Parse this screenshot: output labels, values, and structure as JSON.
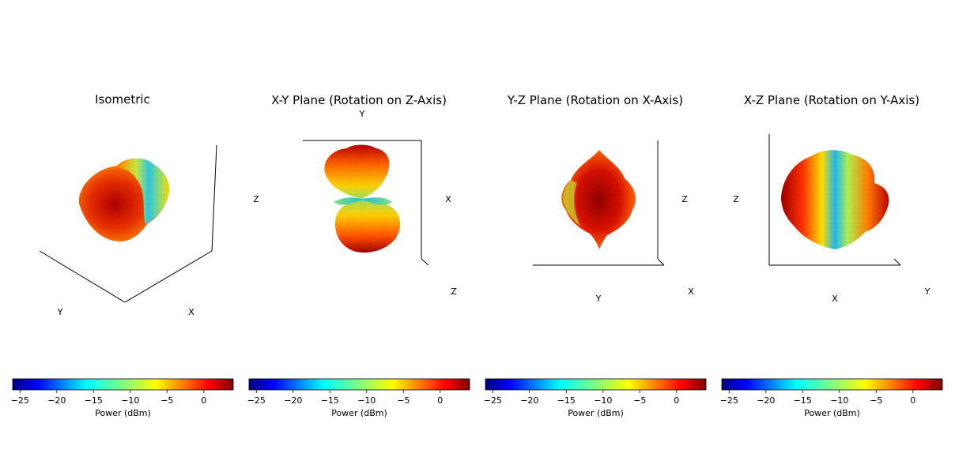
{
  "chart_data": [
    {
      "type": "surface3d",
      "title": "Isometric",
      "axis_labels": {
        "x": "X",
        "y": "Y"
      },
      "colorbar": {
        "label": "Power (dBm)",
        "range": [
          -26,
          4
        ],
        "ticks": [
          -25,
          -20,
          -15,
          -10,
          -5,
          0
        ],
        "tick_labels": [
          "−25",
          "−20",
          "−15",
          "−10",
          "−5",
          "0"
        ],
        "colormap": "jet"
      }
    },
    {
      "type": "surface3d",
      "title": "X-Y Plane (Rotation on Z-Axis)",
      "axis_labels": {
        "top": "Y",
        "left": "Z",
        "right": "X",
        "corner": "Z"
      },
      "colorbar": {
        "label": "Power (dBm)",
        "range": [
          -26,
          4
        ],
        "ticks": [
          -25,
          -20,
          -15,
          -10,
          -5,
          0
        ],
        "tick_labels": [
          "−25",
          "−20",
          "−15",
          "−10",
          "−5",
          "0"
        ],
        "colormap": "jet"
      }
    },
    {
      "type": "surface3d",
      "title": "Y-Z Plane (Rotation on X-Axis)",
      "axis_labels": {
        "right": "Z",
        "bottom": "Y",
        "corner": "X"
      },
      "colorbar": {
        "label": "Power (dBm)",
        "range": [
          -26,
          4
        ],
        "ticks": [
          -25,
          -20,
          -15,
          -10,
          -5,
          0
        ],
        "tick_labels": [
          "−25",
          "−20",
          "−15",
          "−10",
          "−5",
          "0"
        ],
        "colormap": "jet"
      }
    },
    {
      "type": "surface3d",
      "title": "X-Z Plane (Rotation on Y-Axis)",
      "axis_labels": {
        "left": "Z",
        "bottom": "X",
        "corner": "Y"
      },
      "colorbar": {
        "label": "Power (dBm)",
        "range": [
          -26,
          4
        ],
        "ticks": [
          -25,
          -20,
          -15,
          -10,
          -5,
          0
        ],
        "tick_labels": [
          "−25",
          "−20",
          "−15",
          "−10",
          "−5",
          "0"
        ],
        "colormap": "jet"
      }
    }
  ]
}
